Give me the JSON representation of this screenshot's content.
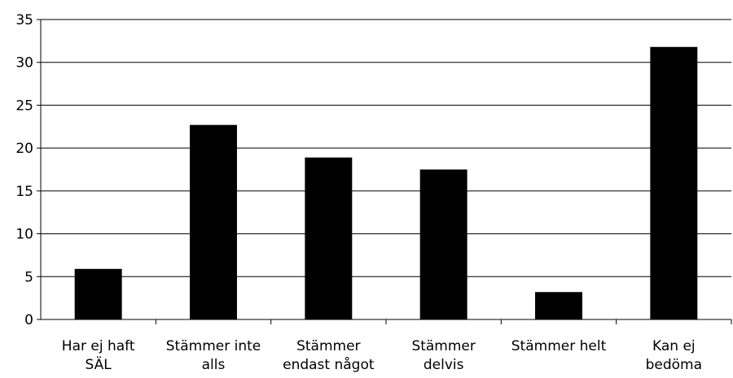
{
  "chart_data": {
    "type": "bar",
    "title": "",
    "xlabel": "",
    "ylabel": "",
    "ylim": [
      0,
      35
    ],
    "yticks": [
      0,
      5,
      10,
      15,
      20,
      25,
      30,
      35
    ],
    "grid": true,
    "legend": "none",
    "bar_color": "#000000",
    "categories": [
      [
        "Har ej haft",
        "SÄL"
      ],
      [
        "Stämmer inte",
        "alls"
      ],
      [
        "Stämmer",
        "endast något"
      ],
      [
        "Stämmer",
        "delvis"
      ],
      [
        "Stämmer helt"
      ],
      [
        "Kan ej",
        "bedöma"
      ]
    ],
    "values": [
      5.9,
      22.7,
      18.9,
      17.5,
      3.2,
      31.8
    ]
  }
}
